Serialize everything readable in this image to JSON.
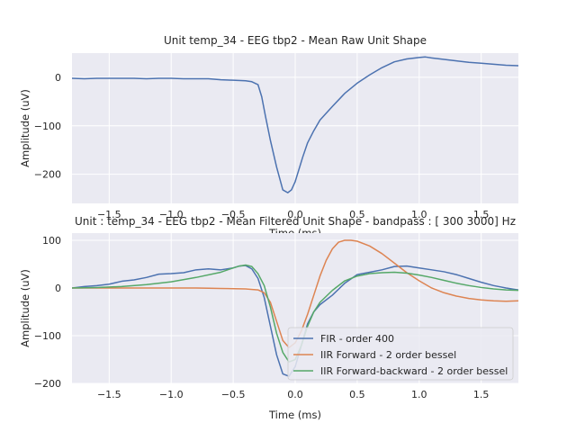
{
  "chart_data": [
    {
      "type": "line",
      "title": "Unit temp_34 - EEG tbp2 - Mean Raw Unit Shape",
      "xlabel": "Time (ms)",
      "ylabel": "Amplitude (uV)",
      "xlim": [
        -1.8,
        1.8
      ],
      "ylim": [
        -260,
        50
      ],
      "grid": true,
      "xticks": [
        {
          "value": -1.5,
          "label": "−1.5"
        },
        {
          "value": -1.0,
          "label": "−1.0"
        },
        {
          "value": -0.5,
          "label": "−0.5"
        },
        {
          "value": 0.0,
          "label": "0.0"
        },
        {
          "value": 0.5,
          "label": "0.5"
        },
        {
          "value": 1.0,
          "label": "1.0"
        },
        {
          "value": 1.5,
          "label": "1.5"
        }
      ],
      "yticks": [
        {
          "value": 0,
          "label": "0"
        },
        {
          "value": -100,
          "label": "−100"
        },
        {
          "value": -200,
          "label": "−200"
        }
      ],
      "series": [
        {
          "color": "#4c72b0",
          "x": [
            -1.8,
            -1.7,
            -1.6,
            -1.5,
            -1.4,
            -1.3,
            -1.2,
            -1.1,
            -1.0,
            -0.9,
            -0.8,
            -0.7,
            -0.6,
            -0.5,
            -0.4,
            -0.35,
            -0.3,
            -0.27,
            -0.24,
            -0.2,
            -0.15,
            -0.1,
            -0.06,
            -0.03,
            0.0,
            0.03,
            0.06,
            0.1,
            0.15,
            0.2,
            0.3,
            0.4,
            0.5,
            0.6,
            0.7,
            0.8,
            0.9,
            1.0,
            1.05,
            1.1,
            1.2,
            1.3,
            1.4,
            1.5,
            1.6,
            1.7,
            1.8
          ],
          "y": [
            -2,
            -3,
            -2,
            -2,
            -2,
            -2,
            -3,
            -2,
            -2,
            -3,
            -3,
            -3,
            -5,
            -6,
            -7,
            -9,
            -15,
            -40,
            -80,
            -130,
            -185,
            -232,
            -238,
            -232,
            -215,
            -190,
            -165,
            -135,
            -110,
            -88,
            -60,
            -33,
            -12,
            5,
            20,
            32,
            38,
            41,
            42,
            40,
            37,
            34,
            31,
            29,
            27,
            25,
            24
          ]
        }
      ]
    },
    {
      "type": "line",
      "title": "Unit : temp_34 - EEG tbp2 - Mean Filtered Unit Shape - bandpass : [ 300 3000] Hz",
      "xlabel": "Time (ms)",
      "ylabel": "Amplitude (uV)",
      "xlim": [
        -1.8,
        1.8
      ],
      "ylim": [
        -200,
        115
      ],
      "grid": true,
      "legend": "lower-right",
      "xticks": [
        {
          "value": -1.5,
          "label": "−1.5"
        },
        {
          "value": -1.0,
          "label": "−1.0"
        },
        {
          "value": -0.5,
          "label": "−0.5"
        },
        {
          "value": 0.0,
          "label": "0.0"
        },
        {
          "value": 0.5,
          "label": "0.5"
        },
        {
          "value": 1.0,
          "label": "1.0"
        },
        {
          "value": 1.5,
          "label": "1.5"
        }
      ],
      "yticks": [
        {
          "value": 100,
          "label": "100"
        },
        {
          "value": 0,
          "label": "0"
        },
        {
          "value": -100,
          "label": "−100"
        },
        {
          "value": -200,
          "label": "−200"
        }
      ],
      "series": [
        {
          "name": "FIR - order 400",
          "color": "#4c72b0",
          "x": [
            -1.8,
            -1.7,
            -1.6,
            -1.5,
            -1.4,
            -1.3,
            -1.2,
            -1.1,
            -1.0,
            -0.9,
            -0.8,
            -0.7,
            -0.6,
            -0.5,
            -0.45,
            -0.4,
            -0.35,
            -0.3,
            -0.25,
            -0.2,
            -0.15,
            -0.1,
            -0.05,
            0.0,
            0.05,
            0.1,
            0.15,
            0.2,
            0.3,
            0.4,
            0.5,
            0.6,
            0.7,
            0.8,
            0.9,
            1.0,
            1.1,
            1.2,
            1.3,
            1.4,
            1.5,
            1.6,
            1.7,
            1.8
          ],
          "y": [
            0,
            3,
            5,
            8,
            14,
            17,
            22,
            29,
            30,
            32,
            38,
            40,
            38,
            42,
            46,
            47,
            40,
            20,
            -20,
            -80,
            -140,
            -180,
            -185,
            -165,
            -120,
            -75,
            -50,
            -35,
            -15,
            10,
            28,
            33,
            38,
            45,
            46,
            42,
            38,
            34,
            28,
            20,
            12,
            5,
            0,
            -4
          ]
        },
        {
          "name": "IIR Forward - 2 order bessel",
          "color": "#dd8452",
          "x": [
            -1.8,
            -1.6,
            -1.4,
            -1.2,
            -1.0,
            -0.8,
            -0.6,
            -0.4,
            -0.3,
            -0.25,
            -0.2,
            -0.15,
            -0.1,
            -0.05,
            0.0,
            0.05,
            0.1,
            0.15,
            0.2,
            0.25,
            0.3,
            0.35,
            0.4,
            0.45,
            0.5,
            0.6,
            0.7,
            0.8,
            0.9,
            1.0,
            1.1,
            1.2,
            1.3,
            1.4,
            1.5,
            1.6,
            1.7,
            1.8
          ],
          "y": [
            0,
            0,
            0,
            0,
            0,
            0,
            -1,
            -2,
            -4,
            -10,
            -30,
            -70,
            -110,
            -125,
            -115,
            -90,
            -55,
            -15,
            25,
            58,
            82,
            96,
            100,
            100,
            98,
            88,
            72,
            52,
            32,
            15,
            0,
            -10,
            -17,
            -22,
            -25,
            -27,
            -28,
            -27
          ]
        },
        {
          "name": "IIR Forward-backward - 2 order bessel",
          "color": "#55a868",
          "x": [
            -1.8,
            -1.6,
            -1.4,
            -1.2,
            -1.0,
            -0.8,
            -0.6,
            -0.5,
            -0.45,
            -0.4,
            -0.35,
            -0.3,
            -0.25,
            -0.2,
            -0.15,
            -0.1,
            -0.05,
            0.0,
            0.05,
            0.1,
            0.15,
            0.2,
            0.3,
            0.4,
            0.5,
            0.6,
            0.7,
            0.8,
            0.9,
            1.0,
            1.1,
            1.2,
            1.3,
            1.4,
            1.5,
            1.6,
            1.7,
            1.8
          ],
          "y": [
            0,
            1,
            3,
            7,
            13,
            22,
            33,
            42,
            46,
            48,
            45,
            30,
            5,
            -40,
            -95,
            -135,
            -155,
            -150,
            -120,
            -80,
            -50,
            -30,
            -5,
            15,
            25,
            30,
            32,
            33,
            31,
            27,
            22,
            16,
            10,
            5,
            1,
            -2,
            -4,
            -5
          ]
        }
      ]
    }
  ]
}
